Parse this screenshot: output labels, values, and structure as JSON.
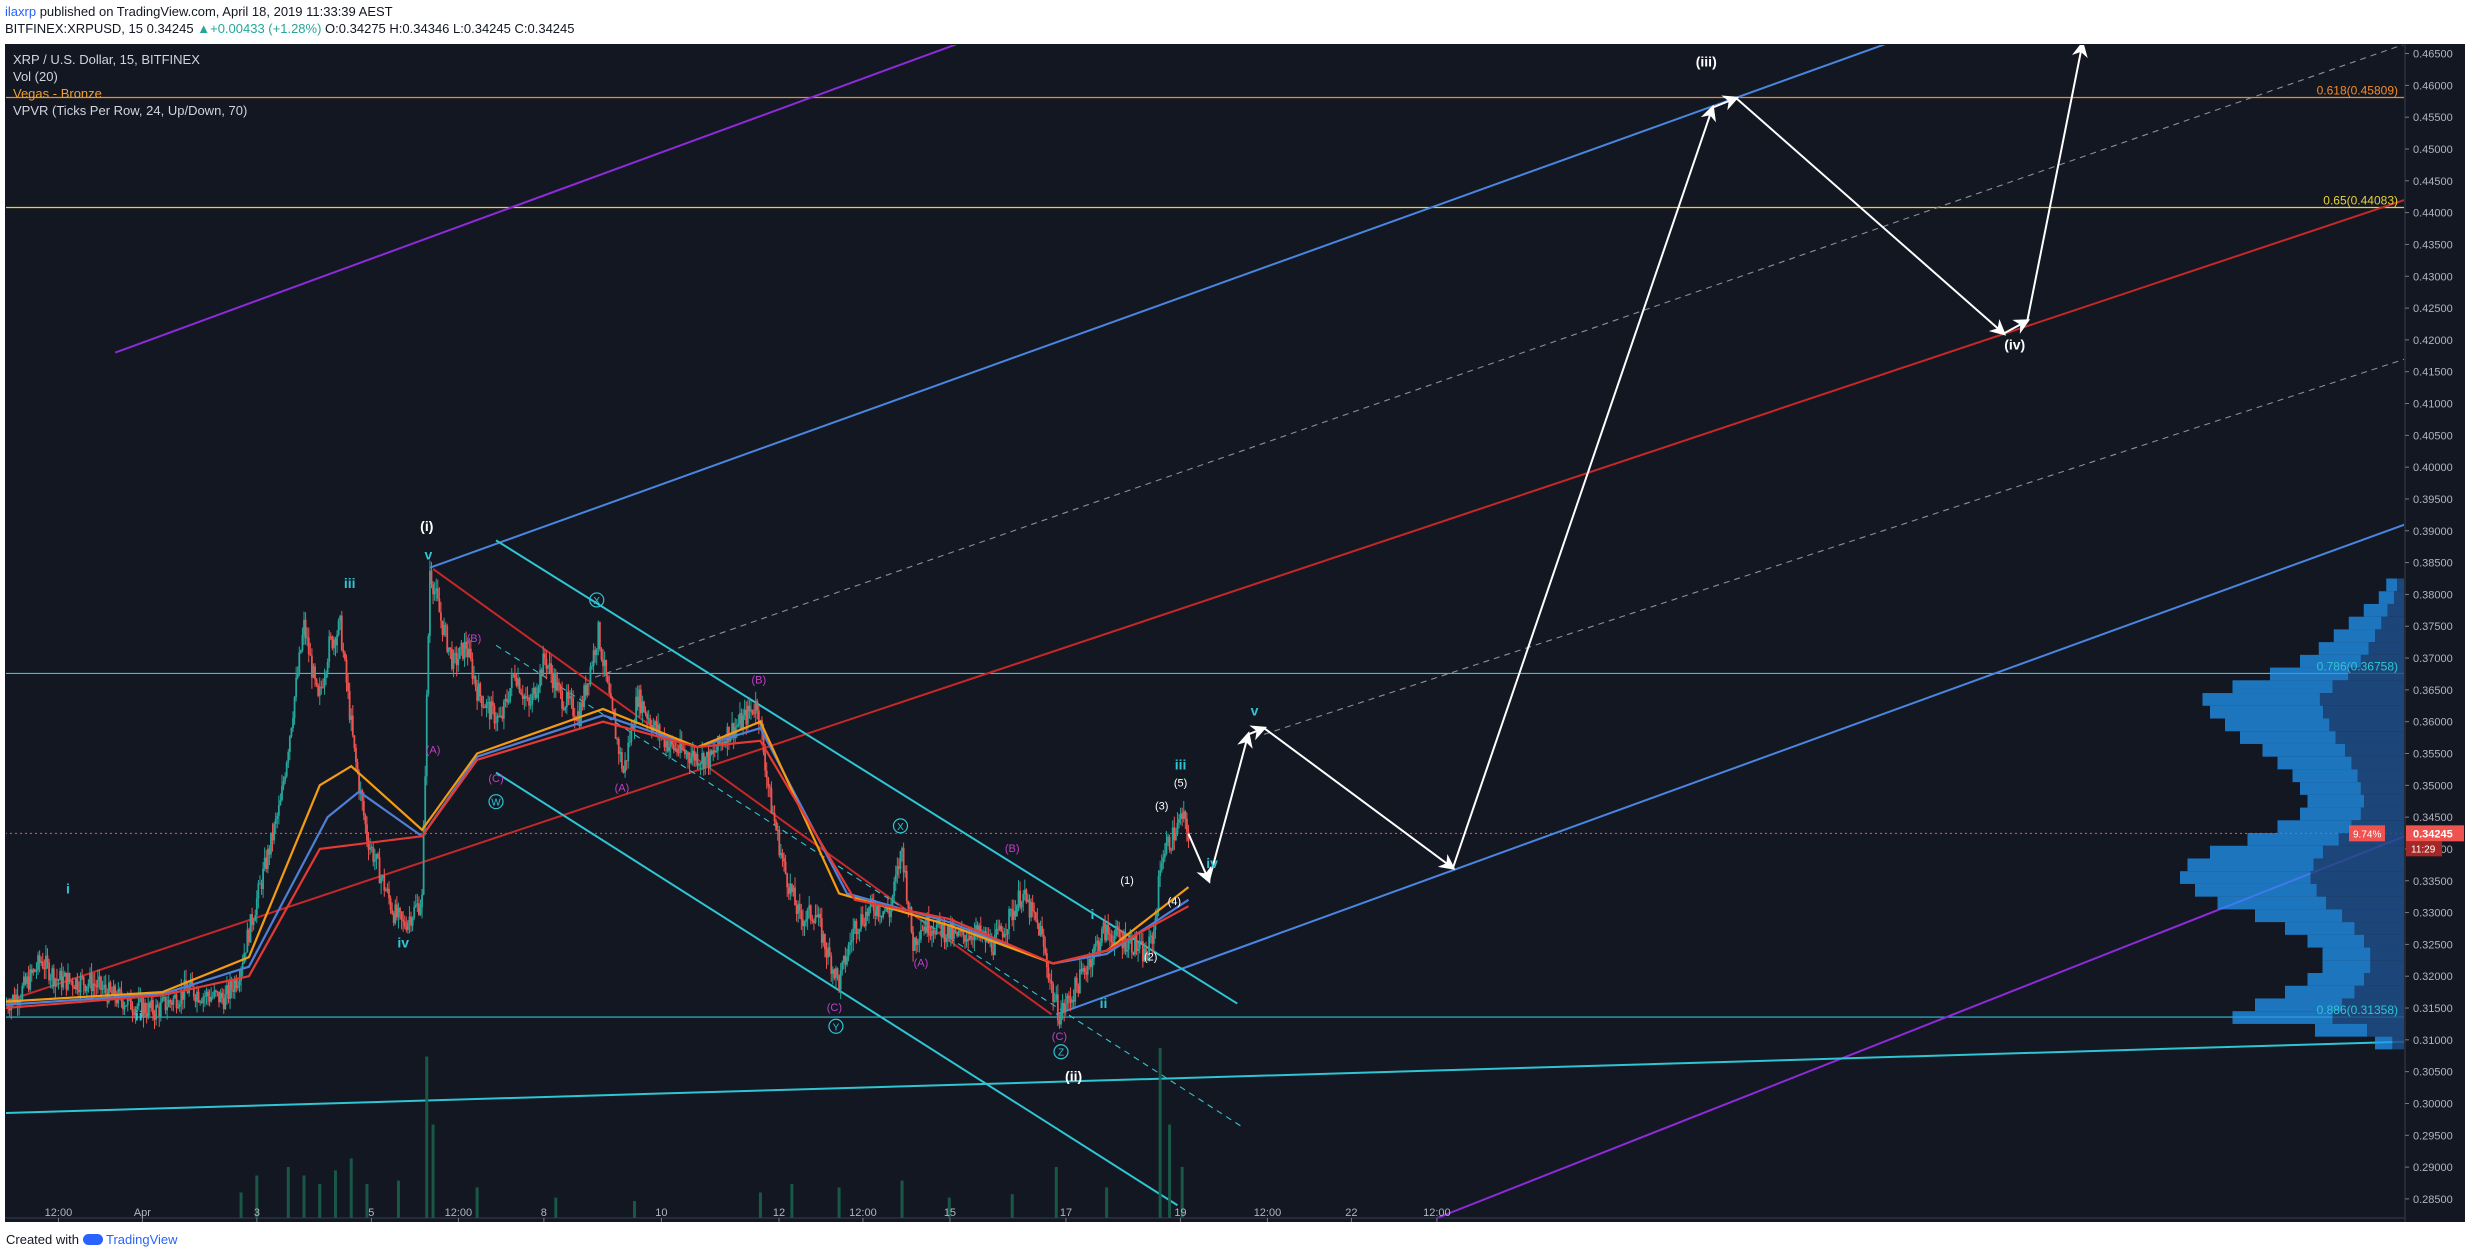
{
  "header": {
    "author": "ilaxrp",
    "published": " published on TradingView.com, April 18, 2019 11:33:39 AEST",
    "quote": {
      "symbol": "BITFINEX:XRPUSD, 15",
      "last": "0.34245",
      "change": "+0.00433 (+1.28%)",
      "open_label": "O:",
      "open": "0.34275",
      "high_label": "H:",
      "high": "0.34346",
      "low_label": "L:",
      "low": "0.34245",
      "close_label": "C:",
      "close": "0.34245"
    }
  },
  "legend": {
    "title": "XRP / U.S. Dollar, 15, BITFINEX",
    "vol": "Vol (20)",
    "vegas": "Vegas - Bronze",
    "vpvr": "VPVR (Ticks Per Row, 24, Up/Down, 70)"
  },
  "footer": {
    "created_with": "Created with",
    "brand": "TradingView"
  },
  "colors": {
    "background": "#131722",
    "up_candle": "#26a69a",
    "down_candle": "#ef5350",
    "channel_blue": "#4a86e0",
    "cyan": "#2fc5d2",
    "red_line": "#c62828",
    "purple": "#8e2bd8",
    "fib_orange": "#f08b2a",
    "fib_yellow": "#e6d23a",
    "arrows": "#ffffff"
  },
  "chart_data": {
    "type": "candlestick",
    "symbol": "XRPUSD",
    "interval": "15",
    "ylim": [
      0.282,
      0.4665
    ],
    "x_ticks": [
      "12:00",
      "Apr",
      "3",
      "5",
      "12:00",
      "8",
      "10",
      "12",
      "12:00",
      "15",
      "17",
      "19",
      "12:00",
      "22",
      "12:00"
    ],
    "price_ticks": [
      "0.46500",
      "0.46000",
      "0.45500",
      "0.45000",
      "0.44500",
      "0.44000",
      "0.43500",
      "0.43000",
      "0.42500",
      "0.42000",
      "0.41500",
      "0.41000",
      "0.40500",
      "0.40000",
      "0.39500",
      "0.39000",
      "0.38500",
      "0.38000",
      "0.37500",
      "0.37000",
      "0.36500",
      "0.36000",
      "0.35500",
      "0.35000",
      "0.34500",
      "0.34000",
      "0.33500",
      "0.33000",
      "0.32500",
      "0.32000",
      "0.31500",
      "0.31000",
      "0.30500",
      "0.30000",
      "0.29500",
      "0.29000",
      "0.28500"
    ],
    "last_price": {
      "value": 0.34245,
      "label": "0.34245",
      "change_badge": "9.74%",
      "countdown": "11:29"
    },
    "fib_levels": [
      {
        "label": "0.618(0.45809)",
        "value": 0.45809,
        "color": "#f08b2a"
      },
      {
        "label": "0.65(0.44083)",
        "value": 0.4408,
        "color": "#e6d23a"
      },
      {
        "label": "0.786(0.36758)",
        "value": 0.36758,
        "color": "#2fc5d2"
      },
      {
        "label": "0.886(0.31358)",
        "value": 0.31358,
        "color": "#2fc5d2"
      }
    ],
    "price_path": [
      [
        0,
        0.3155
      ],
      [
        10,
        0.3175
      ],
      [
        18,
        0.3205
      ],
      [
        23,
        0.3225
      ],
      [
        33,
        0.3195
      ],
      [
        55,
        0.319
      ],
      [
        68,
        0.317
      ],
      [
        82,
        0.3155
      ],
      [
        95,
        0.3145
      ],
      [
        105,
        0.316
      ],
      [
        116,
        0.318
      ],
      [
        127,
        0.317
      ],
      [
        140,
        0.3165
      ],
      [
        148,
        0.32
      ],
      [
        155,
        0.327
      ],
      [
        165,
        0.337
      ],
      [
        175,
        0.347
      ],
      [
        183,
        0.362
      ],
      [
        190,
        0.375
      ],
      [
        199,
        0.363
      ],
      [
        206,
        0.372
      ],
      [
        213,
        0.375
      ],
      [
        222,
        0.355
      ],
      [
        230,
        0.342
      ],
      [
        237,
        0.337
      ],
      [
        247,
        0.33
      ],
      [
        253,
        0.328
      ],
      [
        265,
        0.332
      ],
      [
        270,
        0.384
      ],
      [
        277,
        0.376
      ],
      [
        285,
        0.369
      ],
      [
        293,
        0.372
      ],
      [
        300,
        0.365
      ],
      [
        307,
        0.362
      ],
      [
        315,
        0.36
      ],
      [
        324,
        0.368
      ],
      [
        333,
        0.362
      ],
      [
        343,
        0.37
      ],
      [
        353,
        0.364
      ],
      [
        365,
        0.361
      ],
      [
        377,
        0.374
      ],
      [
        385,
        0.362
      ],
      [
        393,
        0.352
      ],
      [
        402,
        0.364
      ],
      [
        413,
        0.359
      ],
      [
        423,
        0.356
      ],
      [
        433,
        0.355
      ],
      [
        448,
        0.354
      ],
      [
        458,
        0.358
      ],
      [
        468,
        0.36
      ],
      [
        478,
        0.363
      ],
      [
        486,
        0.348
      ],
      [
        495,
        0.337
      ],
      [
        505,
        0.329
      ],
      [
        515,
        0.33
      ],
      [
        522,
        0.324
      ],
      [
        530,
        0.319
      ],
      [
        540,
        0.328
      ],
      [
        552,
        0.331
      ],
      [
        562,
        0.33
      ],
      [
        570,
        0.34
      ],
      [
        577,
        0.325
      ],
      [
        582,
        0.328
      ],
      [
        590,
        0.328
      ],
      [
        605,
        0.326
      ],
      [
        615,
        0.327
      ],
      [
        628,
        0.325
      ],
      [
        638,
        0.329
      ],
      [
        646,
        0.333
      ],
      [
        658,
        0.327
      ],
      [
        666,
        0.317
      ],
      [
        670,
        0.314
      ],
      [
        678,
        0.317
      ],
      [
        688,
        0.322
      ],
      [
        698,
        0.327
      ],
      [
        708,
        0.326
      ],
      [
        718,
        0.325
      ],
      [
        725,
        0.323
      ],
      [
        730,
        0.327
      ],
      [
        735,
        0.339
      ],
      [
        742,
        0.342
      ],
      [
        748,
        0.345
      ],
      [
        752,
        0.3424
      ]
    ],
    "moving_averages": {
      "red": [
        [
          0,
          0.315
        ],
        [
          100,
          0.317
        ],
        [
          155,
          0.32
        ],
        [
          200,
          0.34
        ],
        [
          265,
          0.342
        ],
        [
          300,
          0.354
        ],
        [
          380,
          0.36
        ],
        [
          440,
          0.356
        ],
        [
          480,
          0.357
        ],
        [
          540,
          0.332
        ],
        [
          600,
          0.329
        ],
        [
          666,
          0.322
        ],
        [
          700,
          0.324
        ],
        [
          752,
          0.331
        ]
      ],
      "orange": [
        [
          0,
          0.316
        ],
        [
          100,
          0.3175
        ],
        [
          155,
          0.323
        ],
        [
          200,
          0.35
        ],
        [
          220,
          0.353
        ],
        [
          265,
          0.343
        ],
        [
          300,
          0.355
        ],
        [
          380,
          0.362
        ],
        [
          440,
          0.356
        ],
        [
          480,
          0.36
        ],
        [
          530,
          0.333
        ],
        [
          600,
          0.328
        ],
        [
          666,
          0.322
        ],
        [
          700,
          0.324
        ],
        [
          752,
          0.334
        ]
      ],
      "blue": [
        [
          0,
          0.3155
        ],
        [
          100,
          0.3172
        ],
        [
          155,
          0.3215
        ],
        [
          205,
          0.345
        ],
        [
          225,
          0.349
        ],
        [
          265,
          0.342
        ],
        [
          300,
          0.3545
        ],
        [
          380,
          0.361
        ],
        [
          440,
          0.356
        ],
        [
          480,
          0.359
        ],
        [
          535,
          0.333
        ],
        [
          600,
          0.3285
        ],
        [
          666,
          0.322
        ],
        [
          700,
          0.3235
        ],
        [
          752,
          0.332
        ]
      ]
    },
    "projection_path": [
      [
        752,
        0.3424
      ],
      [
        765,
        0.335
      ],
      [
        790,
        0.358
      ],
      [
        800,
        0.359
      ],
      [
        920,
        0.337
      ],
      [
        1085,
        0.4565
      ],
      [
        1100,
        0.458
      ],
      [
        1270,
        0.421
      ],
      [
        1285,
        0.423
      ],
      [
        1320,
        0.4665
      ]
    ],
    "trendlines": [
      {
        "name": "upper-blue-channel",
        "color": "#4a86e0",
        "points": [
          [
            270,
            0.3842
          ],
          [
            1195,
            0.4665
          ]
        ]
      },
      {
        "name": "lower-blue-channel",
        "color": "#4a86e0",
        "points": [
          [
            668,
            0.314
          ],
          [
            1525,
            0.391
          ]
        ]
      },
      {
        "name": "blue-median-dashed",
        "color": "#8a8f99",
        "dashed": true,
        "points": [
          [
            375,
            0.367
          ],
          [
            1525,
            0.4665
          ]
        ]
      },
      {
        "name": "blue-lower-dashed",
        "color": "#8a8f99",
        "dashed": true,
        "points": [
          [
            800,
            0.358
          ],
          [
            1525,
            0.417
          ]
        ]
      },
      {
        "name": "red-median",
        "color": "#c62828",
        "points": [
          [
            0,
            0.316
          ],
          [
            1525,
            0.442
          ]
        ]
      },
      {
        "name": "purple-upper",
        "color": "#8e2bd8",
        "points": [
          [
            70,
            0.418
          ],
          [
            605,
            0.4665
          ]
        ]
      },
      {
        "name": "purple-lower",
        "color": "#8e2bd8",
        "points": [
          [
            910,
            0.282
          ],
          [
            1525,
            0.342
          ]
        ]
      },
      {
        "name": "cyan-upper-channel",
        "color": "#2fc5d2",
        "points": [
          [
            312,
            0.3885
          ],
          [
            783,
            0.3157
          ]
        ]
      },
      {
        "name": "cyan-lower-channel",
        "color": "#2fc5d2",
        "points": [
          [
            312,
            0.352
          ],
          [
            745,
            0.284
          ]
        ]
      },
      {
        "name": "cyan-base",
        "color": "#2fc5d2",
        "points": [
          [
            0,
            0.2985
          ],
          [
            1525,
            0.3097
          ]
        ]
      },
      {
        "name": "red-correction",
        "color": "#c62828",
        "points": [
          [
            272,
            0.384
          ],
          [
            665,
            0.314
          ]
        ]
      },
      {
        "name": "cyan-correction-dotted",
        "color": "#2fc5d2",
        "dashed": true,
        "points": [
          [
            312,
            0.372
          ],
          [
            785,
            0.2965
          ]
        ]
      }
    ],
    "wave_labels": [
      {
        "text": "(i)",
        "x": 268,
        "y": 0.39,
        "color": "#ffffff",
        "bold": true
      },
      {
        "text": "v",
        "x": 269,
        "y": 0.3855,
        "color": "#2fc5d2",
        "bold": true
      },
      {
        "text": "iii",
        "x": 219,
        "y": 0.381,
        "color": "#2fc5d2",
        "bold": true
      },
      {
        "text": "iv",
        "x": 253,
        "y": 0.3245,
        "color": "#2fc5d2",
        "bold": true
      },
      {
        "text": "i",
        "x": 40,
        "y": 0.333,
        "color": "#2fc5d2",
        "bold": true
      },
      {
        "text": "ii",
        "x": 85,
        "y": 0.313,
        "color": "#2fc5d2",
        "bold": true
      },
      {
        "text": "(A)",
        "x": 272,
        "y": 0.355,
        "color": "#c040c8"
      },
      {
        "text": "(B)",
        "x": 298,
        "y": 0.3725,
        "color": "#c040c8"
      },
      {
        "text": "(C)",
        "x": 312,
        "y": 0.3505,
        "color": "#c040c8"
      },
      {
        "text": "W",
        "x": 312,
        "y": 0.3468,
        "color": "#2fc5d2",
        "circle": true
      },
      {
        "text": "X",
        "x": 376,
        "y": 0.3785,
        "color": "#2fc5d2",
        "circle": true
      },
      {
        "text": "(A)",
        "x": 392,
        "y": 0.349,
        "color": "#c040c8"
      },
      {
        "text": "(B)",
        "x": 479,
        "y": 0.366,
        "color": "#c040c8"
      },
      {
        "text": "(C)",
        "x": 527,
        "y": 0.3145,
        "color": "#c040c8"
      },
      {
        "text": "Y",
        "x": 528,
        "y": 0.3115,
        "color": "#2fc5d2",
        "circle": true
      },
      {
        "text": "X",
        "x": 569,
        "y": 0.343,
        "color": "#2fc5d2",
        "circle": true
      },
      {
        "text": "(A)",
        "x": 582,
        "y": 0.3215,
        "color": "#c040c8"
      },
      {
        "text": "(B)",
        "x": 640,
        "y": 0.3395,
        "color": "#c040c8"
      },
      {
        "text": "(C)",
        "x": 670,
        "y": 0.31,
        "color": "#c040c8"
      },
      {
        "text": "Z",
        "x": 671,
        "y": 0.3075,
        "color": "#2fc5d2",
        "circle": true
      },
      {
        "text": "(ii)",
        "x": 679,
        "y": 0.3035,
        "color": "#ffffff",
        "bold": true
      },
      {
        "text": "i",
        "x": 691,
        "y": 0.329,
        "color": "#2fc5d2",
        "bold": true
      },
      {
        "text": "ii",
        "x": 698,
        "y": 0.315,
        "color": "#2fc5d2",
        "bold": true
      },
      {
        "text": "(1)",
        "x": 713,
        "y": 0.3345,
        "color": "#ffffff"
      },
      {
        "text": "(2)",
        "x": 728,
        "y": 0.3225,
        "color": "#ffffff"
      },
      {
        "text": "(3)",
        "x": 735,
        "y": 0.3462,
        "color": "#ffffff"
      },
      {
        "text": "(4)",
        "x": 743,
        "y": 0.3312,
        "color": "#ffffff"
      },
      {
        "text": "(5)",
        "x": 747,
        "y": 0.3498,
        "color": "#ffffff"
      },
      {
        "text": "iii",
        "x": 747,
        "y": 0.3525,
        "color": "#2fc5d2",
        "bold": true
      },
      {
        "text": "iv",
        "x": 767,
        "y": 0.337,
        "color": "#2fc5d2",
        "bold": true
      },
      {
        "text": "v",
        "x": 794,
        "y": 0.361,
        "color": "#2fc5d2",
        "bold": true
      },
      {
        "text": "(iii)",
        "x": 1081,
        "y": 0.463,
        "color": "#ffffff",
        "bold": true
      },
      {
        "text": "(iv)",
        "x": 1277,
        "y": 0.4185,
        "color": "#ffffff",
        "bold": true
      }
    ],
    "volume_profile": {
      "rows": [
        [
          0.3815,
          0.25
        ],
        [
          0.3795,
          0.35
        ],
        [
          0.3775,
          0.55
        ],
        [
          0.3755,
          0.75
        ],
        [
          0.3735,
          0.95
        ],
        [
          0.3715,
          1.15
        ],
        [
          0.3695,
          1.4
        ],
        [
          0.3675,
          1.8
        ],
        [
          0.3655,
          2.3
        ],
        [
          0.3635,
          2.7
        ],
        [
          0.3615,
          2.6
        ],
        [
          0.3595,
          2.4
        ],
        [
          0.3575,
          2.2
        ],
        [
          0.3555,
          1.9
        ],
        [
          0.3535,
          1.7
        ],
        [
          0.3515,
          1.5
        ],
        [
          0.3495,
          1.4
        ],
        [
          0.3475,
          1.3
        ],
        [
          0.3455,
          1.4
        ],
        [
          0.3435,
          1.7
        ],
        [
          0.3415,
          2.1
        ],
        [
          0.3395,
          2.6
        ],
        [
          0.3375,
          2.9
        ],
        [
          0.3355,
          3.0
        ],
        [
          0.3335,
          2.8
        ],
        [
          0.3315,
          2.5
        ],
        [
          0.3295,
          2.0
        ],
        [
          0.3275,
          1.6
        ],
        [
          0.3255,
          1.3
        ],
        [
          0.3235,
          1.1
        ],
        [
          0.3215,
          1.1
        ],
        [
          0.3195,
          1.3
        ],
        [
          0.3175,
          1.6
        ],
        [
          0.3155,
          2.0
        ],
        [
          0.3135,
          2.3
        ],
        [
          0.3115,
          1.2
        ],
        [
          0.3095,
          0.4
        ]
      ]
    },
    "volume": [
      [
        150,
        0.15
      ],
      [
        160,
        0.25
      ],
      [
        180,
        0.3
      ],
      [
        190,
        0.25
      ],
      [
        200,
        0.2
      ],
      [
        210,
        0.28
      ],
      [
        220,
        0.35
      ],
      [
        230,
        0.2
      ],
      [
        250,
        0.22
      ],
      [
        268,
        0.95
      ],
      [
        272,
        0.55
      ],
      [
        300,
        0.18
      ],
      [
        350,
        0.12
      ],
      [
        400,
        0.1
      ],
      [
        480,
        0.15
      ],
      [
        500,
        0.2
      ],
      [
        530,
        0.18
      ],
      [
        570,
        0.22
      ],
      [
        600,
        0.12
      ],
      [
        640,
        0.14
      ],
      [
        668,
        0.3
      ],
      [
        700,
        0.18
      ],
      [
        734,
        1.0
      ],
      [
        740,
        0.55
      ],
      [
        748,
        0.3
      ]
    ]
  }
}
